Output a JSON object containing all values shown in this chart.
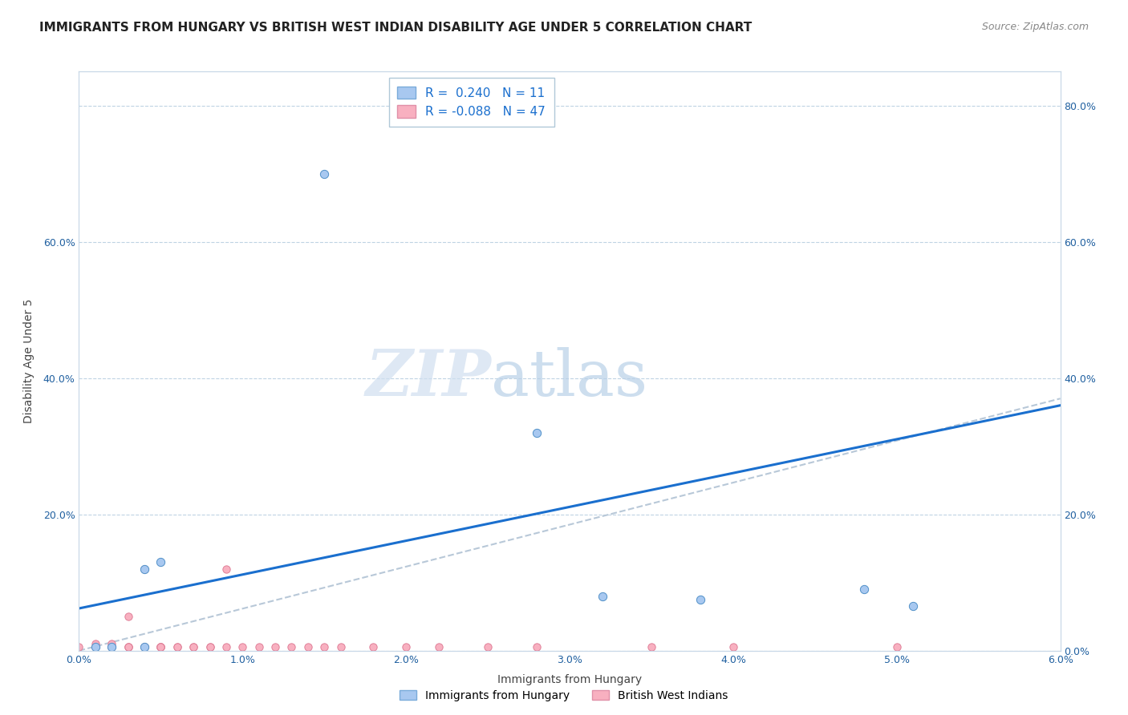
{
  "title": "IMMIGRANTS FROM HUNGARY VS BRITISH WEST INDIAN DISABILITY AGE UNDER 5 CORRELATION CHART",
  "source": "Source: ZipAtlas.com",
  "xlabel": "Immigrants from Hungary",
  "ylabel": "Disability Age Under 5",
  "xlim": [
    0.0,
    0.06
  ],
  "ylim": [
    0.0,
    0.85
  ],
  "yticks_left": [
    0.0,
    0.2,
    0.4,
    0.6,
    0.8
  ],
  "yticks_right": [
    0.0,
    0.2,
    0.4,
    0.6,
    0.8
  ],
  "xticks": [
    0.0,
    0.01,
    0.02,
    0.03,
    0.04,
    0.05,
    0.06
  ],
  "hungary_r": 0.24,
  "hungary_n": 11,
  "bwi_r": -0.088,
  "bwi_n": 47,
  "hungary_color": "#a8c8f0",
  "bwi_color": "#f8b0c0",
  "hungary_line_color": "#1a6fce",
  "bwi_line_color": "#b8c8d8",
  "hungary_dots": [
    [
      0.004,
      0.12
    ],
    [
      0.005,
      0.13
    ],
    [
      0.015,
      0.7
    ],
    [
      0.028,
      0.32
    ],
    [
      0.032,
      0.08
    ],
    [
      0.038,
      0.075
    ],
    [
      0.048,
      0.09
    ],
    [
      0.051,
      0.065
    ],
    [
      0.004,
      0.005
    ],
    [
      0.001,
      0.005
    ],
    [
      0.002,
      0.005
    ]
  ],
  "bwi_dots": [
    [
      0.0,
      0.005
    ],
    [
      0.001,
      0.005
    ],
    [
      0.001,
      0.005
    ],
    [
      0.001,
      0.005
    ],
    [
      0.001,
      0.01
    ],
    [
      0.002,
      0.005
    ],
    [
      0.002,
      0.005
    ],
    [
      0.002,
      0.005
    ],
    [
      0.002,
      0.01
    ],
    [
      0.002,
      0.005
    ],
    [
      0.003,
      0.005
    ],
    [
      0.003,
      0.005
    ],
    [
      0.003,
      0.05
    ],
    [
      0.003,
      0.005
    ],
    [
      0.004,
      0.005
    ],
    [
      0.004,
      0.005
    ],
    [
      0.004,
      0.12
    ],
    [
      0.004,
      0.005
    ],
    [
      0.004,
      0.005
    ],
    [
      0.005,
      0.005
    ],
    [
      0.005,
      0.005
    ],
    [
      0.005,
      0.005
    ],
    [
      0.005,
      0.005
    ],
    [
      0.005,
      0.005
    ],
    [
      0.006,
      0.005
    ],
    [
      0.006,
      0.005
    ],
    [
      0.007,
      0.005
    ],
    [
      0.007,
      0.005
    ],
    [
      0.008,
      0.005
    ],
    [
      0.008,
      0.005
    ],
    [
      0.009,
      0.12
    ],
    [
      0.009,
      0.005
    ],
    [
      0.01,
      0.005
    ],
    [
      0.011,
      0.005
    ],
    [
      0.012,
      0.005
    ],
    [
      0.013,
      0.005
    ],
    [
      0.014,
      0.005
    ],
    [
      0.015,
      0.005
    ],
    [
      0.016,
      0.005
    ],
    [
      0.018,
      0.005
    ],
    [
      0.02,
      0.005
    ],
    [
      0.022,
      0.005
    ],
    [
      0.025,
      0.005
    ],
    [
      0.028,
      0.005
    ],
    [
      0.035,
      0.005
    ],
    [
      0.04,
      0.005
    ],
    [
      0.05,
      0.005
    ]
  ],
  "hungary_line": [
    0.0,
    0.062,
    0.06,
    0.36
  ],
  "bwi_line": [
    0.0,
    0.0,
    0.06,
    0.37
  ],
  "watermark_zip": "ZIP",
  "watermark_atlas": "atlas",
  "title_fontsize": 11,
  "axis_label_fontsize": 10,
  "tick_fontsize": 9,
  "legend_fontsize": 11
}
